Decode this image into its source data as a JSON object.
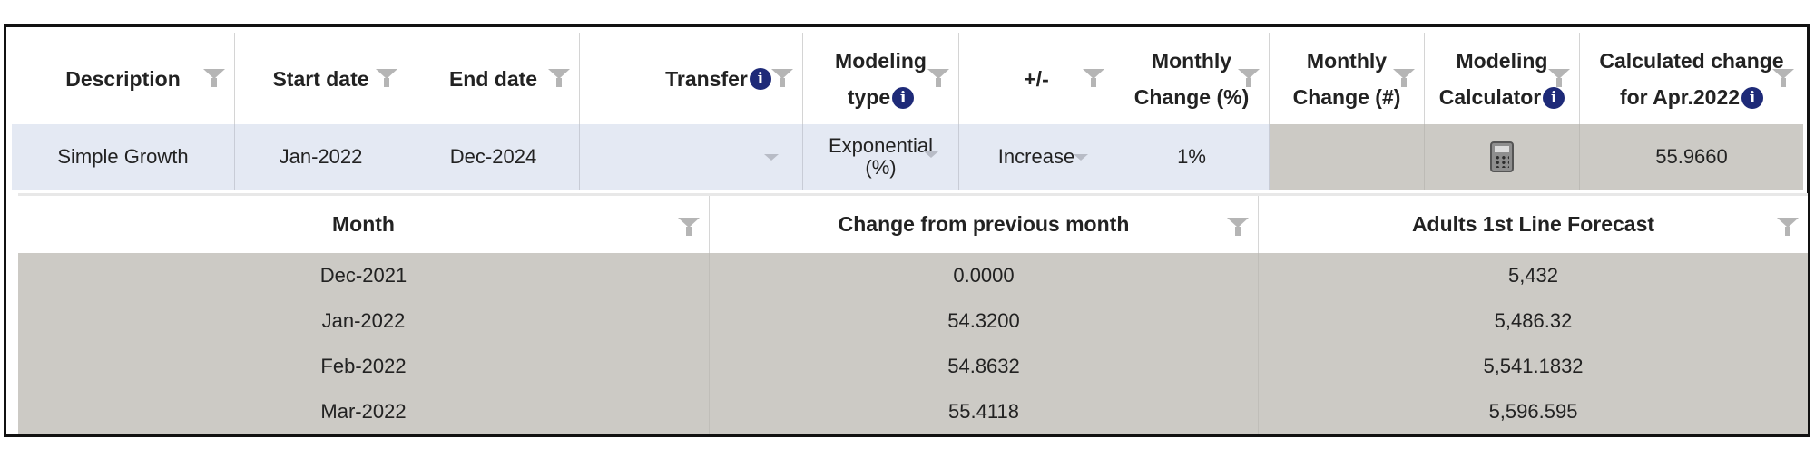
{
  "modeling_table": {
    "headers": {
      "description": "Description",
      "start_date": "Start date",
      "end_date": "End date",
      "transfer": "Transfer",
      "modeling_type_l1": "Modeling",
      "modeling_type_l2": "type",
      "plus_minus": "+/-",
      "monthly_pct_l1": "Monthly",
      "monthly_pct_l2": "Change (%)",
      "monthly_num_l1": "Monthly",
      "monthly_num_l2": "Change (#)",
      "calculator_l1": "Modeling",
      "calculator_l2": "Calculator",
      "calculated_l1": "Calculated change",
      "calculated_l2": "for Apr.2022"
    },
    "row": {
      "description": "Simple Growth",
      "start_date": "Jan-2022",
      "end_date": "Dec-2024",
      "transfer": "",
      "modeling_type_l1": "Exponential",
      "modeling_type_l2": "(%)",
      "plus_minus": "Increase",
      "monthly_pct": "1%",
      "monthly_num": "",
      "calculated": "55.9660"
    },
    "info_glyph": "i"
  },
  "forecast_table": {
    "headers": {
      "month": "Month",
      "change": "Change from previous month",
      "forecast": "Adults 1st Line Forecast"
    },
    "rows": [
      {
        "month": "Dec-2021",
        "change": "0.0000",
        "forecast": "5,432"
      },
      {
        "month": "Jan-2022",
        "change": "54.3200",
        "forecast": "5,486.32"
      },
      {
        "month": "Feb-2022",
        "change": "54.8632",
        "forecast": "5,541.1832"
      },
      {
        "month": "Mar-2022",
        "change": "55.4118",
        "forecast": "5,596.595"
      }
    ]
  },
  "colors": {
    "editable_row": "#e4e9f3",
    "readonly_cell": "#cccac5",
    "info_icon": "#1e2a78",
    "filter_icon": "#b5b5b5"
  }
}
